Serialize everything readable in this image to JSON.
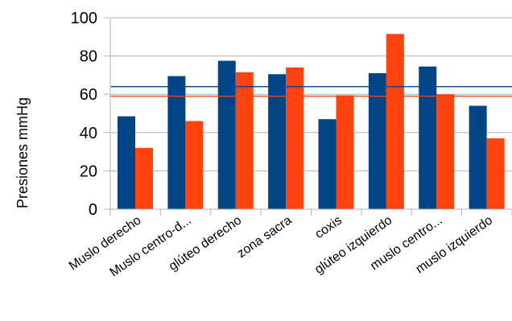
{
  "chart_data": {
    "type": "bar",
    "ylabel": "Presiones mmHg",
    "ylim": [
      0,
      100
    ],
    "yticks": [
      0,
      20,
      40,
      60,
      80,
      100
    ],
    "grid": "horizontal",
    "categories": [
      "Muslo derecho",
      "Muslo centro-d...",
      "glúteo derecho",
      "zona sacra",
      "coxis",
      "glúteo izquierdo",
      "muslo centro...",
      "muslo izquierdo"
    ],
    "series": [
      {
        "color": "#004586",
        "values": [
          48.5,
          69.5,
          77.5,
          70.5,
          47,
          71,
          74.5,
          54
        ]
      },
      {
        "color": "#ff420e",
        "values": [
          32,
          46,
          71.5,
          74,
          59.5,
          91.5,
          60,
          37
        ]
      }
    ],
    "reference_lines": [
      {
        "value": 64,
        "color": "#004586"
      },
      {
        "value": 59,
        "color": "#ff420e"
      }
    ]
  }
}
